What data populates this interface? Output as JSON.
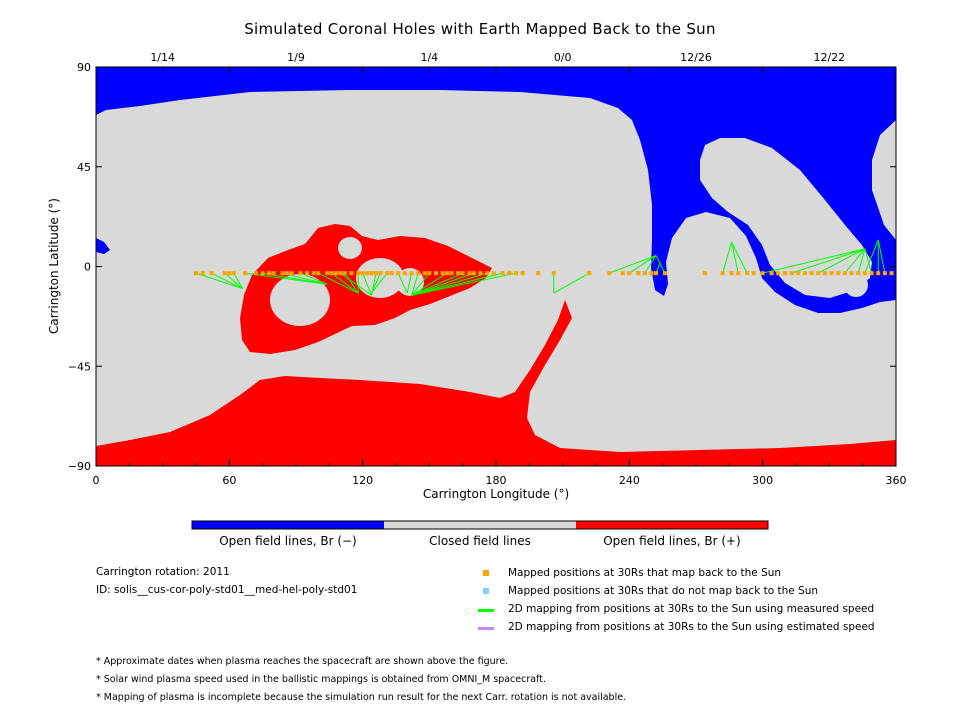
{
  "title": "Simulated Coronal Holes with Earth Mapped Back to the Sun",
  "chart_data": {
    "type": "map",
    "title": "Simulated Coronal Holes with Earth Mapped Back to the Sun",
    "xlabel": "Carrington Longitude (°)",
    "ylabel": "Carrington Latitude (°)",
    "xlim": [
      0,
      360
    ],
    "ylim": [
      -90,
      90
    ],
    "x_ticks": [
      0,
      60,
      120,
      180,
      240,
      300,
      360
    ],
    "y_ticks": [
      -90,
      -45,
      0,
      45,
      90
    ],
    "top_axis_dates": [
      {
        "label": "1/14",
        "lon": 30
      },
      {
        "label": "1/9",
        "lon": 90
      },
      {
        "label": "1/4",
        "lon": 150
      },
      {
        "label": "0/0",
        "lon": 210
      },
      {
        "label": "12/26",
        "lon": 270
      },
      {
        "label": "12/22",
        "lon": 330
      }
    ],
    "regions": {
      "neg_open_color": "#0000ff",
      "closed_color": "#d9d9d9",
      "pos_open_color": "#ff0000"
    },
    "mapped_points": {
      "color": "#ffa500",
      "lat": -3,
      "lon": [
        45,
        48,
        52,
        58,
        60,
        62,
        67,
        72,
        75,
        78,
        80,
        84,
        86,
        88,
        92,
        95,
        98,
        100,
        104,
        106,
        108,
        110,
        112,
        115,
        118,
        120,
        122,
        124,
        126,
        128,
        131,
        133,
        136,
        139,
        142,
        145,
        148,
        150,
        153,
        156,
        158,
        160,
        163,
        165,
        168,
        170,
        173,
        176,
        179,
        183,
        186,
        189,
        192,
        199,
        206,
        222,
        231,
        237,
        240,
        244,
        247,
        250,
        252,
        256,
        274,
        282,
        286,
        289,
        293,
        296,
        300,
        304,
        307,
        310,
        313,
        316,
        319,
        322,
        325,
        328,
        331,
        334,
        337,
        340,
        343,
        346,
        349,
        352,
        355,
        358
      ]
    },
    "mapping_lines": {
      "color": "#00ff00",
      "segments": [
        [
          [
            45,
            -3
          ],
          [
            66,
            -10
          ]
        ],
        [
          [
            52,
            -3
          ],
          [
            66,
            -10
          ]
        ],
        [
          [
            58,
            -3
          ],
          [
            66,
            -10
          ]
        ],
        [
          [
            62,
            -3
          ],
          [
            66,
            -10
          ]
        ],
        [
          [
            67,
            -3
          ],
          [
            104,
            -8
          ]
        ],
        [
          [
            75,
            -3
          ],
          [
            104,
            -8
          ]
        ],
        [
          [
            84,
            -3
          ],
          [
            104,
            -8
          ]
        ],
        [
          [
            92,
            -3
          ],
          [
            104,
            -8
          ]
        ],
        [
          [
            100,
            -3
          ],
          [
            118,
            -12
          ]
        ],
        [
          [
            106,
            -3
          ],
          [
            118,
            -12
          ]
        ],
        [
          [
            112,
            -3
          ],
          [
            118,
            -12
          ]
        ],
        [
          [
            118,
            -3
          ],
          [
            118,
            -12
          ]
        ],
        [
          [
            110,
            -3
          ],
          [
            124,
            -13
          ]
        ],
        [
          [
            120,
            -3
          ],
          [
            124,
            -13
          ]
        ],
        [
          [
            126,
            -3
          ],
          [
            124,
            -13
          ]
        ],
        [
          [
            128,
            -3
          ],
          [
            124,
            -12
          ]
        ],
        [
          [
            131,
            -3
          ],
          [
            124,
            -12
          ]
        ],
        [
          [
            136,
            -3
          ],
          [
            140,
            -12
          ]
        ],
        [
          [
            142,
            -3
          ],
          [
            140,
            -12
          ]
        ],
        [
          [
            145,
            -3
          ],
          [
            142,
            -13
          ]
        ],
        [
          [
            150,
            -3
          ],
          [
            142,
            -13
          ]
        ],
        [
          [
            158,
            -3
          ],
          [
            142,
            -13
          ]
        ],
        [
          [
            165,
            -3
          ],
          [
            142,
            -13
          ]
        ],
        [
          [
            170,
            -3
          ],
          [
            142,
            -13
          ]
        ],
        [
          [
            176,
            -3
          ],
          [
            142,
            -13
          ]
        ],
        [
          [
            183,
            -3
          ],
          [
            142,
            -13
          ]
        ],
        [
          [
            189,
            -3
          ],
          [
            142,
            -13
          ]
        ],
        [
          [
            206,
            -3
          ],
          [
            206,
            -12
          ]
        ],
        [
          [
            222,
            -3
          ],
          [
            206,
            -12
          ]
        ],
        [
          [
            231,
            -3
          ],
          [
            252,
            5
          ]
        ],
        [
          [
            240,
            -3
          ],
          [
            252,
            5
          ]
        ],
        [
          [
            247,
            -3
          ],
          [
            252,
            5
          ]
        ],
        [
          [
            256,
            -3
          ],
          [
            252,
            5
          ]
        ],
        [
          [
            252,
            -3
          ],
          [
            254,
            2
          ]
        ],
        [
          [
            282,
            -3
          ],
          [
            286,
            11
          ]
        ],
        [
          [
            289,
            -3
          ],
          [
            286,
            11
          ]
        ],
        [
          [
            293,
            -3
          ],
          [
            286,
            11
          ]
        ],
        [
          [
            300,
            -3
          ],
          [
            346,
            8
          ]
        ],
        [
          [
            313,
            -3
          ],
          [
            346,
            8
          ]
        ],
        [
          [
            325,
            -3
          ],
          [
            346,
            8
          ]
        ],
        [
          [
            337,
            -3
          ],
          [
            346,
            8
          ]
        ],
        [
          [
            343,
            -3
          ],
          [
            346,
            8
          ]
        ],
        [
          [
            349,
            -3
          ],
          [
            346,
            8
          ]
        ],
        [
          [
            346,
            -3
          ],
          [
            352,
            12
          ]
        ],
        [
          [
            352,
            -3
          ],
          [
            352,
            12
          ]
        ],
        [
          [
            355,
            -3
          ],
          [
            352,
            12
          ]
        ]
      ]
    },
    "colorbar": {
      "segments": [
        {
          "color": "#0000ff",
          "label": "Open field lines, Br (−)"
        },
        {
          "color": "#d9d9d9",
          "label": "Closed field lines"
        },
        {
          "color": "#ff0000",
          "label": "Open field lines, Br (+)"
        }
      ]
    },
    "legend": [
      {
        "symbol": "square",
        "color": "#ffa500",
        "label": "Mapped positions at 30Rs that map back to the Sun"
      },
      {
        "symbol": "square",
        "color": "#87cefa",
        "label": "Mapped positions at 30Rs that do not map back to the Sun"
      },
      {
        "symbol": "line",
        "color": "#00ff00",
        "label": "2D mapping from positions at 30Rs to the Sun using measured speed"
      },
      {
        "symbol": "line",
        "color": "#c08af0",
        "label": "2D mapping from positions at 30Rs to the Sun using estimated speed"
      }
    ]
  },
  "info": {
    "rotation": "Carrington rotation: 2011",
    "id": "ID: solis__cus-cor-poly-std01__med-hel-poly-std01"
  },
  "notes": [
    "* Approximate dates when plasma reaches the spacecraft are shown above the figure.",
    "* Solar wind plasma speed used in the ballistic mappings is obtained from OMNI_M spacecraft.",
    "* Mapping of plasma is incomplete because the simulation run result for the next Carr. rotation is not available."
  ]
}
